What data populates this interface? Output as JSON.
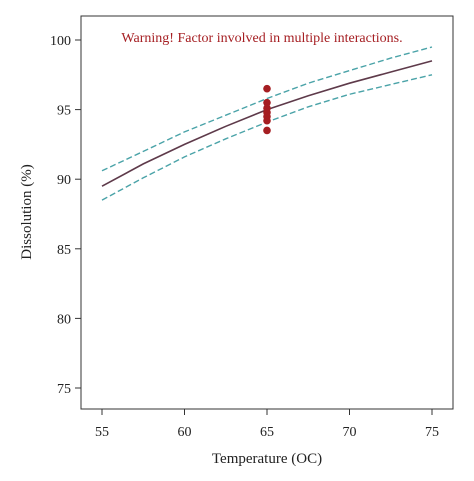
{
  "chart_data": {
    "type": "line",
    "title": "",
    "warning": "Warning! Factor involved in multiple interactions.",
    "xlabel": "Temperature (OC)",
    "ylabel": "Dissolution (%)",
    "xlim": [
      55,
      75
    ],
    "ylim": [
      73.5,
      101
    ],
    "xticks": [
      55,
      60,
      65,
      70,
      75
    ],
    "yticks": [
      75,
      80,
      85,
      90,
      95,
      100
    ],
    "grid": false,
    "series": [
      {
        "role": "prediction",
        "style": "solid",
        "x": [
          55,
          57.5,
          60,
          62.5,
          65,
          67.5,
          70,
          72.5,
          75
        ],
        "y": [
          89.5,
          91.1,
          92.5,
          93.8,
          95.0,
          96.0,
          96.9,
          97.7,
          98.5
        ]
      },
      {
        "role": "upper-interval",
        "style": "dashed",
        "x": [
          55,
          57.5,
          60,
          62.5,
          65,
          67.5,
          70,
          72.5,
          75
        ],
        "y": [
          90.6,
          92.0,
          93.4,
          94.6,
          95.8,
          96.9,
          97.8,
          98.7,
          99.5
        ]
      },
      {
        "role": "lower-interval",
        "style": "dashed",
        "x": [
          55,
          57.5,
          60,
          62.5,
          65,
          67.5,
          70,
          72.5,
          75
        ],
        "y": [
          88.5,
          90.1,
          91.6,
          92.9,
          94.1,
          95.2,
          96.1,
          96.8,
          97.5
        ]
      }
    ],
    "points": {
      "x": [
        65,
        65,
        65,
        65,
        65,
        65,
        65
      ],
      "y": [
        96.5,
        95.5,
        95.1,
        94.8,
        94.5,
        94.2,
        93.5
      ]
    },
    "colors": {
      "fit_line": "#5e3a4a",
      "interval": "#4aa3a8",
      "points": "#a51e22",
      "warning": "#a51e22",
      "axis": "#333333"
    }
  }
}
